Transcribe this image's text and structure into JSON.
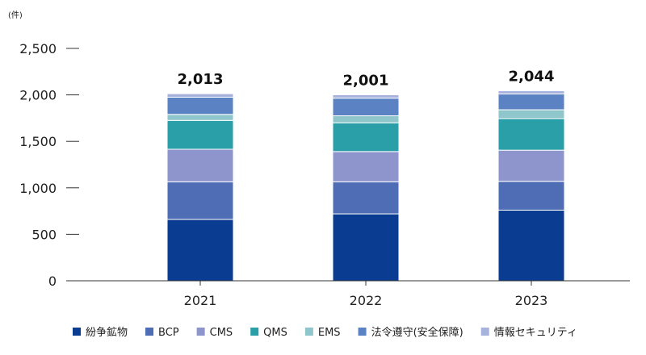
{
  "chart_data": {
    "type": "bar",
    "stacked": true,
    "unit": "(件)",
    "categories": [
      "2021",
      "2022",
      "2023"
    ],
    "ylim": [
      0,
      2500
    ],
    "yticks": [
      0,
      500,
      1000,
      1500,
      2000,
      2500
    ],
    "ytick_labels": [
      "0",
      "500",
      "1,000",
      "1,500",
      "2,000",
      "2,500"
    ],
    "series": [
      {
        "name": "紛争鉱物",
        "color": "#0a3d91",
        "values": [
          660,
          720,
          760
        ]
      },
      {
        "name": "BCP",
        "color": "#4f6db5",
        "values": [
          405,
          345,
          310
        ]
      },
      {
        "name": "CMS",
        "color": "#8e95cc",
        "values": [
          350,
          325,
          335
        ]
      },
      {
        "name": "QMS",
        "color": "#2a9fa8",
        "values": [
          310,
          310,
          340
        ]
      },
      {
        "name": "EMS",
        "color": "#8fc6cc",
        "values": [
          65,
          75,
          95
        ]
      },
      {
        "name": "法令遵守(安全保障)",
        "color": "#5b82c2",
        "values": [
          185,
          190,
          170
        ]
      },
      {
        "name": "情報セキュリティ",
        "color": "#a7b3dd",
        "values": [
          38,
          36,
          34
        ]
      }
    ],
    "totals": [
      2013,
      2001,
      2044
    ],
    "total_labels": [
      "2,013",
      "2,001",
      "2,044"
    ],
    "legend_position": "bottom",
    "grid": false
  }
}
